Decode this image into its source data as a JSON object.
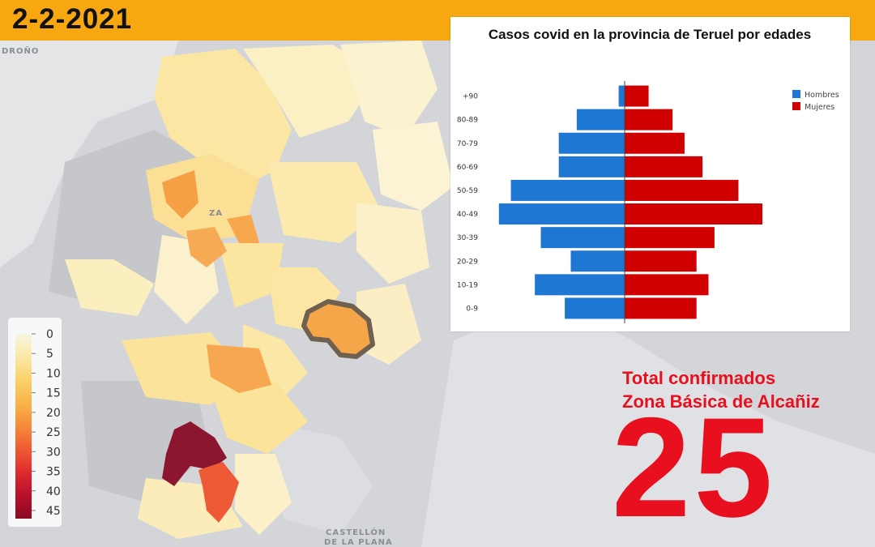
{
  "header": {
    "date": "2-2-2021",
    "bar_color": "#f7a70f"
  },
  "map": {
    "place_labels": [
      "DROÑO",
      "ZA",
      "CASTELLÓN",
      "DE LA PLANA"
    ],
    "highlighted_zone_color": "#f5a649"
  },
  "legend": {
    "ticks": [
      "0",
      "5",
      "10",
      "15",
      "20",
      "25",
      "30",
      "35",
      "40",
      "45"
    ],
    "stops": [
      "#f8f5e1",
      "#fbe8a6",
      "#fbd16a",
      "#f9b44a",
      "#f68a3a",
      "#ef5a33",
      "#de2a2e",
      "#b8102c",
      "#8a0a24"
    ]
  },
  "chart_data": {
    "type": "bar",
    "orientation": "horizontal-population-pyramid",
    "title": "Casos covid en la provincia de Teruel por edades",
    "categories": [
      "+90",
      "80-89",
      "70-79",
      "60-69",
      "50-59",
      "40-49",
      "30-39",
      "20-29",
      "10-19",
      "0-9"
    ],
    "series": [
      {
        "name": "Hombres",
        "color": "#1f77d4",
        "values": [
          1,
          8,
          11,
          11,
          19,
          21,
          14,
          9,
          15,
          10
        ]
      },
      {
        "name": "Mujeres",
        "color": "#d00000",
        "values": [
          4,
          8,
          10,
          13,
          19,
          23,
          15,
          12,
          14,
          12
        ]
      }
    ],
    "xlim": [
      -23,
      23
    ],
    "legend": "top-right",
    "grid": false
  },
  "total": {
    "label_line1": "Total confirmados",
    "label_line2": "Zona Básica de Alcañiz",
    "value": "25",
    "color": "#e8101e"
  }
}
